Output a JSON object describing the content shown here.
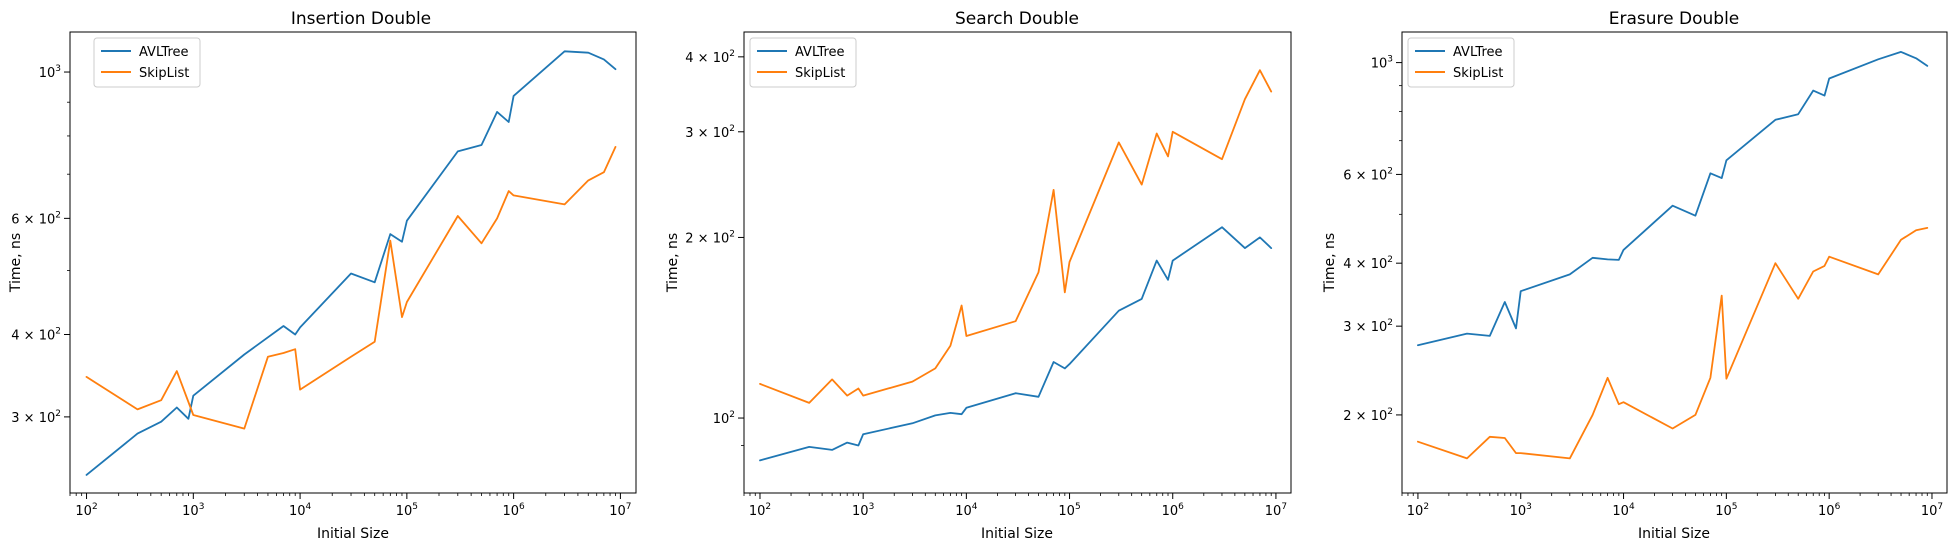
{
  "figure": {
    "background": "#ffffff"
  },
  "series_colors": {
    "AVLTree": "#1f77b4",
    "SkipList": "#ff7f0e"
  },
  "chart_data": [
    {
      "type": "line",
      "title": "Insertion Double",
      "xlabel": "Initial Size",
      "ylabel": "Time, ns",
      "xscale": "log",
      "yscale": "log",
      "xlim": [
        70,
        14000000
      ],
      "ylim": [
        230,
        1150
      ],
      "legend": "upper-left",
      "grid": false,
      "yticks": [
        {
          "value": 300,
          "label": "3 × 10²"
        },
        {
          "value": 400,
          "label": "4 × 10²"
        },
        {
          "value": 600,
          "label": "6 × 10²"
        },
        {
          "value": 1000,
          "label": "10³"
        }
      ],
      "yminor": [
        500,
        700,
        800,
        900
      ],
      "series": [
        {
          "name": "AVLTree",
          "x": [
            100,
            300,
            500,
            700,
            900,
            1000,
            3000,
            7000,
            9000,
            10000,
            30000,
            50000,
            70000,
            90000,
            100000,
            300000,
            500000,
            700000,
            900000,
            1000000,
            3000000,
            5000000,
            7000000,
            9000000
          ],
          "y": [
            245,
            283,
            295,
            310,
            298,
            323,
            373,
            412,
            400,
            410,
            495,
            480,
            568,
            553,
            595,
            758,
            775,
            870,
            840,
            920,
            1075,
            1070,
            1045,
            1010
          ]
        },
        {
          "name": "SkipList",
          "x": [
            100,
            300,
            500,
            700,
            1000,
            3000,
            5000,
            7000,
            9000,
            10000,
            30000,
            50000,
            70000,
            90000,
            100000,
            300000,
            500000,
            700000,
            900000,
            1000000,
            3000000,
            5000000,
            7000000,
            9000000
          ],
          "y": [
            345,
            308,
            318,
            352,
            302,
            288,
            370,
            375,
            380,
            330,
            370,
            390,
            555,
            425,
            448,
            605,
            550,
            600,
            660,
            650,
            630,
            685,
            705,
            770
          ]
        }
      ]
    },
    {
      "type": "line",
      "title": "Search Double",
      "xlabel": "Initial Size",
      "ylabel": "Time, ns",
      "xscale": "log",
      "yscale": "log",
      "xlim": [
        70,
        14000000
      ],
      "ylim": [
        75,
        440
      ],
      "legend": "upper-left",
      "grid": false,
      "yticks": [
        {
          "value": 100,
          "label": "10²"
        },
        {
          "value": 200,
          "label": "2 × 10²"
        },
        {
          "value": 300,
          "label": "3 × 10²"
        },
        {
          "value": 400,
          "label": "4 × 10²"
        }
      ],
      "yminor": [
        90
      ],
      "series": [
        {
          "name": "AVLTree",
          "x": [
            100,
            300,
            500,
            700,
            900,
            1000,
            3000,
            5000,
            7000,
            9000,
            10000,
            30000,
            50000,
            70000,
            90000,
            100000,
            300000,
            500000,
            700000,
            900000,
            1000000,
            3000000,
            5000000,
            7000000,
            9000000
          ],
          "y": [
            85,
            89.5,
            88.5,
            91,
            90,
            94,
            98,
            101,
            102,
            101.5,
            104,
            110,
            108.5,
            124,
            121,
            123,
            151,
            158,
            183,
            170,
            183,
            208,
            192,
            200,
            192
          ]
        },
        {
          "name": "SkipList",
          "x": [
            100,
            300,
            500,
            700,
            900,
            1000,
            3000,
            5000,
            7000,
            9000,
            10000,
            30000,
            50000,
            70000,
            90000,
            100000,
            300000,
            500000,
            700000,
            900000,
            1000000,
            3000000,
            5000000,
            7000000,
            9000000
          ],
          "y": [
            114,
            106,
            116,
            109,
            112,
            109,
            115,
            121,
            132,
            154,
            137,
            145,
            175,
            240,
            162,
            182,
            288,
            245,
            298,
            273,
            300,
            270,
            340,
            380,
            350
          ]
        }
      ]
    },
    {
      "type": "line",
      "title": "Erasure Double",
      "xlabel": "Initial Size",
      "ylabel": "Time, ns",
      "xscale": "log",
      "yscale": "log",
      "xlim": [
        70,
        14000000
      ],
      "ylim": [
        140,
        1150
      ],
      "legend": "upper-left",
      "grid": false,
      "yticks": [
        {
          "value": 200,
          "label": "2 × 10²"
        },
        {
          "value": 300,
          "label": "3 × 10²"
        },
        {
          "value": 400,
          "label": "4 × 10²"
        },
        {
          "value": 600,
          "label": "6 × 10²"
        },
        {
          "value": 1000,
          "label": "10³"
        }
      ],
      "yminor": [
        500,
        700,
        800,
        900
      ],
      "series": [
        {
          "name": "AVLTree",
          "x": [
            100,
            300,
            500,
            700,
            900,
            1000,
            3000,
            5000,
            7000,
            9000,
            10000,
            30000,
            50000,
            70000,
            90000,
            100000,
            300000,
            500000,
            700000,
            900000,
            1000000,
            3000000,
            5000000,
            7000000,
            9000000
          ],
          "y": [
            275,
            290,
            287,
            335,
            297,
            352,
            380,
            410,
            407,
            406,
            425,
            520,
            497,
            603,
            590,
            640,
            770,
            790,
            880,
            860,
            930,
            1015,
            1050,
            1020,
            985
          ]
        },
        {
          "name": "SkipList",
          "x": [
            100,
            300,
            500,
            700,
            900,
            1000,
            3000,
            5000,
            7000,
            9000,
            10000,
            30000,
            50000,
            70000,
            90000,
            100000,
            300000,
            500000,
            700000,
            900000,
            1000000,
            3000000,
            5000000,
            7000000,
            9000000
          ],
          "y": [
            177,
            164,
            181,
            180,
            168,
            168,
            164,
            200,
            237,
            210,
            212,
            188,
            200,
            237,
            345,
            236,
            400,
            340,
            385,
            395,
            412,
            380,
            445,
            465,
            470
          ]
        }
      ]
    }
  ]
}
